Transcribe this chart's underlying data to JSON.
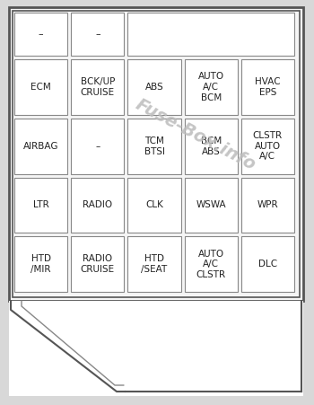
{
  "bg_color": "#d8d8d8",
  "outer_bg": "#f5f5f5",
  "cell_color": "#ffffff",
  "border_color": "#555555",
  "border_color2": "#888888",
  "text_color": "#222222",
  "watermark_color": "#c0c0c0",
  "rows": [
    [
      {
        "label": "–",
        "colspan": 1
      },
      {
        "label": "–",
        "colspan": 1
      },
      {
        "label": "",
        "colspan": 3
      }
    ],
    [
      {
        "label": "ECM",
        "colspan": 1
      },
      {
        "label": "BCK/UP\nCRUISE",
        "colspan": 1
      },
      {
        "label": "ABS",
        "colspan": 1
      },
      {
        "label": "AUTO\nA/C\nBCM",
        "colspan": 1
      },
      {
        "label": "HVAC\nEPS",
        "colspan": 1
      }
    ],
    [
      {
        "label": "AIRBAG",
        "colspan": 1
      },
      {
        "label": "–",
        "colspan": 1
      },
      {
        "label": "TCM\nBTSI",
        "colspan": 1
      },
      {
        "label": "BCM\nABS",
        "colspan": 1
      },
      {
        "label": "CLSTR\nAUTO\nA/C",
        "colspan": 1
      }
    ],
    [
      {
        "label": "LTR",
        "colspan": 1
      },
      {
        "label": "RADIO",
        "colspan": 1
      },
      {
        "label": "CLK",
        "colspan": 1
      },
      {
        "label": "WSWA",
        "colspan": 1
      },
      {
        "label": "WPR",
        "colspan": 1
      }
    ],
    [
      {
        "label": "HTD\n/MIR",
        "colspan": 1
      },
      {
        "label": "RADIO\nCRUISE",
        "colspan": 1
      },
      {
        "label": "HTD\n/SEAT",
        "colspan": 1
      },
      {
        "label": "AUTO\nA/C\nCLSTR",
        "colspan": 1
      },
      {
        "label": "DLC",
        "colspan": 1
      }
    ]
  ],
  "ncols": 5,
  "fig_width": 3.5,
  "fig_height": 4.51,
  "dpi": 100
}
